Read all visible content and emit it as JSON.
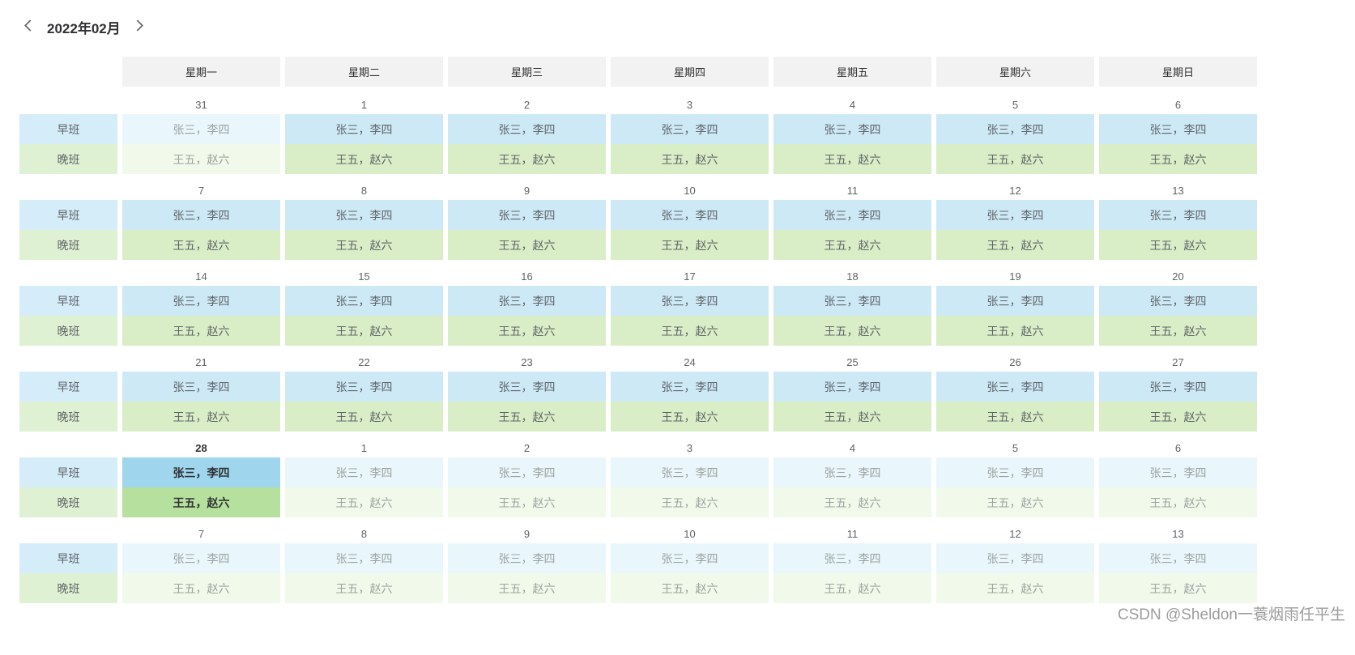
{
  "header": {
    "month_label": "2022年02月"
  },
  "weekdays": [
    "星期一",
    "星期二",
    "星期三",
    "星期四",
    "星期五",
    "星期六",
    "星期日"
  ],
  "shifts": [
    {
      "label": "早班",
      "staff": "张三，李四",
      "color_key": "blue"
    },
    {
      "label": "晚班",
      "staff": "王五，赵六",
      "color_key": "green"
    }
  ],
  "weeks": [
    {
      "days": [
        {
          "d": "31",
          "state": "out"
        },
        {
          "d": "1",
          "state": "in"
        },
        {
          "d": "2",
          "state": "in"
        },
        {
          "d": "3",
          "state": "in"
        },
        {
          "d": "4",
          "state": "in"
        },
        {
          "d": "5",
          "state": "in"
        },
        {
          "d": "6",
          "state": "in"
        }
      ]
    },
    {
      "days": [
        {
          "d": "7",
          "state": "in"
        },
        {
          "d": "8",
          "state": "in"
        },
        {
          "d": "9",
          "state": "in"
        },
        {
          "d": "10",
          "state": "in"
        },
        {
          "d": "11",
          "state": "in"
        },
        {
          "d": "12",
          "state": "in"
        },
        {
          "d": "13",
          "state": "in"
        }
      ]
    },
    {
      "days": [
        {
          "d": "14",
          "state": "in"
        },
        {
          "d": "15",
          "state": "in"
        },
        {
          "d": "16",
          "state": "in"
        },
        {
          "d": "17",
          "state": "in"
        },
        {
          "d": "18",
          "state": "in"
        },
        {
          "d": "19",
          "state": "in"
        },
        {
          "d": "20",
          "state": "in"
        }
      ]
    },
    {
      "days": [
        {
          "d": "21",
          "state": "in"
        },
        {
          "d": "22",
          "state": "in"
        },
        {
          "d": "23",
          "state": "in"
        },
        {
          "d": "24",
          "state": "in"
        },
        {
          "d": "25",
          "state": "in"
        },
        {
          "d": "26",
          "state": "in"
        },
        {
          "d": "27",
          "state": "in"
        }
      ]
    },
    {
      "days": [
        {
          "d": "28",
          "state": "today"
        },
        {
          "d": "1",
          "state": "out"
        },
        {
          "d": "2",
          "state": "out"
        },
        {
          "d": "3",
          "state": "out"
        },
        {
          "d": "4",
          "state": "out"
        },
        {
          "d": "5",
          "state": "out"
        },
        {
          "d": "6",
          "state": "out"
        }
      ]
    },
    {
      "days": [
        {
          "d": "7",
          "state": "out"
        },
        {
          "d": "8",
          "state": "out"
        },
        {
          "d": "9",
          "state": "out"
        },
        {
          "d": "10",
          "state": "out"
        },
        {
          "d": "11",
          "state": "out"
        },
        {
          "d": "12",
          "state": "out"
        },
        {
          "d": "13",
          "state": "out"
        }
      ]
    }
  ],
  "watermark": "CSDN @Sheldon一蓑烟雨任平生",
  "colors": {
    "header_bg": "#f2f2f2",
    "header_text": "#303133",
    "label_blue": "#d5edf8",
    "label_green": "#def1d2",
    "blue_in": "#cde9f6",
    "green_in": "#d9eec6",
    "blue_out": "#e9f6fc",
    "green_out": "#f1f9ea",
    "blue_today": "#9fd6ee",
    "green_today": "#b6e09d",
    "text_normal": "#5f6468",
    "text_out": "#9aa39f",
    "text_strong": "#303133",
    "date_text": "#606266",
    "watermark_text": "#9c9c9c",
    "chevron": "#606266"
  }
}
